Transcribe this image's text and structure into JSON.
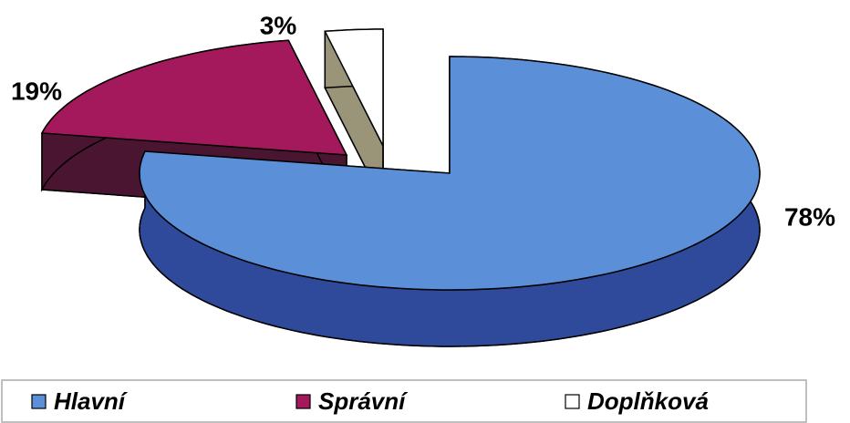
{
  "chart_data": {
    "type": "pie3d",
    "categories": [
      "Hlavní",
      "Správní",
      "Doplňková"
    ],
    "values": [
      78,
      19,
      3
    ],
    "value_labels": [
      "78%",
      "19%",
      "3%"
    ],
    "colors": [
      "#5b8fd8",
      "#a3195b",
      "#ffffff"
    ],
    "legend": "bottom"
  }
}
